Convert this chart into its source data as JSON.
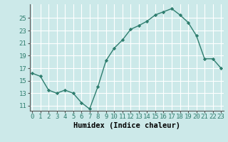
{
  "x": [
    0,
    1,
    2,
    3,
    4,
    5,
    6,
    7,
    8,
    9,
    10,
    11,
    12,
    13,
    14,
    15,
    16,
    17,
    18,
    19,
    20,
    21,
    22,
    23
  ],
  "y": [
    16.2,
    15.7,
    13.5,
    13.0,
    13.5,
    13.0,
    11.5,
    10.5,
    14.0,
    18.2,
    20.2,
    21.5,
    23.2,
    23.8,
    24.5,
    25.5,
    26.0,
    26.5,
    25.5,
    24.3,
    22.2,
    18.5,
    18.5,
    17.0
  ],
  "line_color": "#2e7d6e",
  "marker": "D",
  "marker_size": 2.2,
  "bg_color": "#cce9e9",
  "grid_color": "#ffffff",
  "xlabel": "Humidex (Indice chaleur)",
  "ylim": [
    10.2,
    27.2
  ],
  "yticks": [
    11,
    13,
    15,
    17,
    19,
    21,
    23,
    25
  ],
  "xticks": [
    0,
    1,
    2,
    3,
    4,
    5,
    6,
    7,
    8,
    9,
    10,
    11,
    12,
    13,
    14,
    15,
    16,
    17,
    18,
    19,
    20,
    21,
    22,
    23
  ],
  "xlabel_fontsize": 7.5,
  "tick_fontsize": 6.5,
  "line_width": 1.0,
  "xlim": [
    -0.3,
    23.3
  ]
}
